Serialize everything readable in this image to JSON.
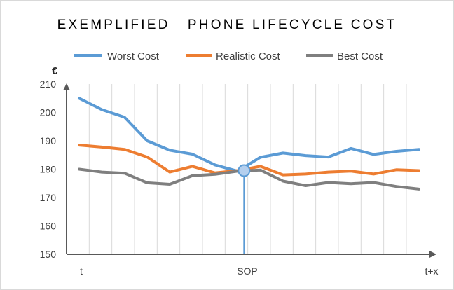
{
  "chart_data": {
    "type": "line",
    "title": "EXEMPLIFIED   PHONE LIFECYCLE COST",
    "ylabel": "€",
    "xlabel": "",
    "ylim": [
      150,
      210
    ],
    "y_ticks": [
      210,
      200,
      190,
      180,
      170,
      160,
      150
    ],
    "x_tick_labels": [
      "t",
      "SOP",
      "t+x"
    ],
    "grid": "vertical",
    "legend_position": "top",
    "series": [
      {
        "name": "Worst Cost",
        "color": "#5b9bd5",
        "values": [
          205,
          201,
          198.3,
          190,
          186.7,
          185.3,
          181.5,
          179.3,
          184.2,
          185.7,
          184.8,
          184.3,
          187.3,
          185.2,
          186.3,
          187
        ]
      },
      {
        "name": "Realistic Cost",
        "color": "#ed7d31",
        "values": [
          188.5,
          187.8,
          187,
          184.3,
          179,
          181,
          178.7,
          179.5,
          181,
          178,
          178.3,
          179,
          179.3,
          178.3,
          179.8,
          179.5
        ]
      },
      {
        "name": "Best Cost",
        "color": "#7f7f7f",
        "values": [
          180,
          179,
          178.6,
          175.2,
          174.7,
          177.7,
          178.2,
          179.3,
          179.7,
          175.8,
          174.2,
          175.3,
          174.9,
          175.3,
          173.9,
          173
        ]
      }
    ],
    "marker": {
      "label": "SOP",
      "index": 7,
      "value": 179.5,
      "color": "#5b9bd5",
      "fill": "#b4cfee"
    }
  }
}
